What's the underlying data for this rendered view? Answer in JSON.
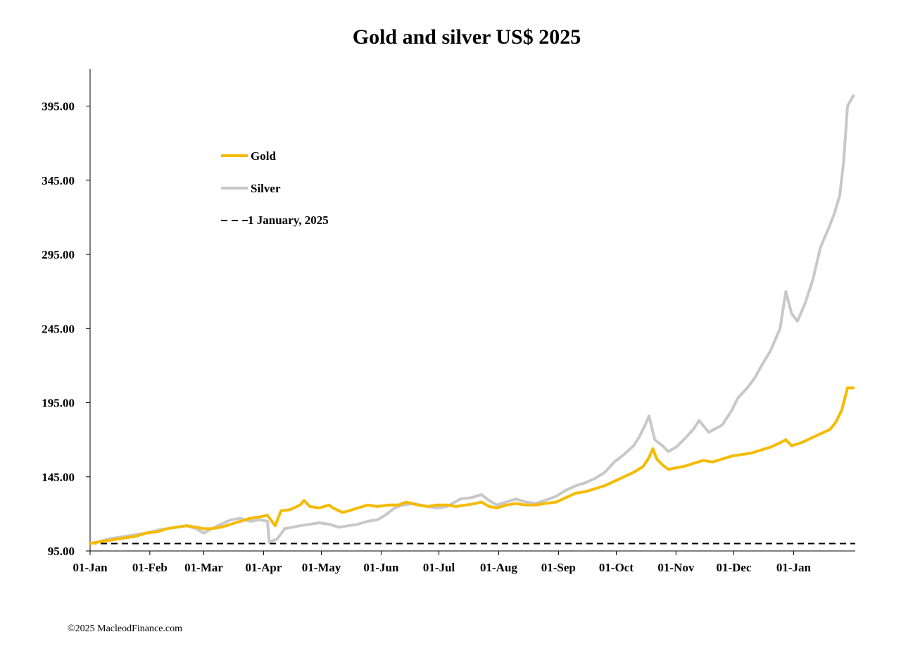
{
  "chart_data": {
    "type": "line",
    "title": "Gold and silver  US$ 2025",
    "xlabel": "",
    "ylabel": "",
    "ylim": [
      95,
      420
    ],
    "y_ticks": [
      95,
      145,
      195,
      245,
      295,
      345,
      395
    ],
    "y_tick_labels": [
      "95.00",
      "145.00",
      "195.00",
      "245.00",
      "295.00",
      "345.00",
      "395.00"
    ],
    "x_ticks": [
      {
        "label": "01-Jan",
        "date": "2025-01-01"
      },
      {
        "label": "01-Feb",
        "date": "2025-02-01"
      },
      {
        "label": "01-Mar",
        "date": "2025-03-01"
      },
      {
        "label": "01-Apr",
        "date": "2025-04-01"
      },
      {
        "label": "01-May",
        "date": "2025-05-01"
      },
      {
        "label": "01-Jun",
        "date": "2025-06-01"
      },
      {
        "label": "01-Jul",
        "date": "2025-07-01"
      },
      {
        "label": "01-Aug",
        "date": "2025-08-01"
      },
      {
        "label": "01-Sep",
        "date": "2025-09-01"
      },
      {
        "label": "01-Oct",
        "date": "2025-10-01"
      },
      {
        "label": "01-Nov",
        "date": "2025-11-01"
      },
      {
        "label": "01-Dec",
        "date": "2025-12-01"
      },
      {
        "label": "01-Jan",
        "date": "2026-01-01"
      }
    ],
    "xlim": [
      "2025-01-01",
      "2026-02-02"
    ],
    "grid": false,
    "legend_position": "upper-left",
    "series": [
      {
        "name": "Gold",
        "color": "#f5bb00",
        "points": [
          [
            "2025-01-01",
            100
          ],
          [
            "2025-01-05",
            101
          ],
          [
            "2025-01-10",
            102
          ],
          [
            "2025-01-15",
            103
          ],
          [
            "2025-01-20",
            104
          ],
          [
            "2025-01-25",
            105
          ],
          [
            "2025-01-30",
            107
          ],
          [
            "2025-02-05",
            108
          ],
          [
            "2025-02-10",
            110
          ],
          [
            "2025-02-15",
            111
          ],
          [
            "2025-02-20",
            112
          ],
          [
            "2025-02-25",
            111
          ],
          [
            "2025-03-01",
            110
          ],
          [
            "2025-03-05",
            110
          ],
          [
            "2025-03-10",
            111
          ],
          [
            "2025-03-15",
            113
          ],
          [
            "2025-03-20",
            115
          ],
          [
            "2025-03-25",
            117
          ],
          [
            "2025-03-30",
            118
          ],
          [
            "2025-04-03",
            119
          ],
          [
            "2025-04-07",
            112
          ],
          [
            "2025-04-10",
            122
          ],
          [
            "2025-04-15",
            123
          ],
          [
            "2025-04-20",
            126
          ],
          [
            "2025-04-22",
            129
          ],
          [
            "2025-04-25",
            125
          ],
          [
            "2025-04-30",
            124
          ],
          [
            "2025-05-05",
            126
          ],
          [
            "2025-05-07",
            124
          ],
          [
            "2025-05-12",
            121
          ],
          [
            "2025-05-15",
            122
          ],
          [
            "2025-05-20",
            124
          ],
          [
            "2025-05-25",
            126
          ],
          [
            "2025-05-30",
            125
          ],
          [
            "2025-06-05",
            126
          ],
          [
            "2025-06-10",
            126
          ],
          [
            "2025-06-14",
            128
          ],
          [
            "2025-06-20",
            126
          ],
          [
            "2025-06-25",
            125
          ],
          [
            "2025-06-30",
            126
          ],
          [
            "2025-07-05",
            126
          ],
          [
            "2025-07-10",
            125
          ],
          [
            "2025-07-15",
            126
          ],
          [
            "2025-07-20",
            127
          ],
          [
            "2025-07-23",
            128
          ],
          [
            "2025-07-27",
            125
          ],
          [
            "2025-07-31",
            124
          ],
          [
            "2025-08-05",
            126
          ],
          [
            "2025-08-10",
            127
          ],
          [
            "2025-08-15",
            126
          ],
          [
            "2025-08-20",
            126
          ],
          [
            "2025-08-25",
            127
          ],
          [
            "2025-08-31",
            128
          ],
          [
            "2025-09-05",
            131
          ],
          [
            "2025-09-10",
            134
          ],
          [
            "2025-09-15",
            135
          ],
          [
            "2025-09-20",
            137
          ],
          [
            "2025-09-25",
            139
          ],
          [
            "2025-09-30",
            142
          ],
          [
            "2025-10-05",
            145
          ],
          [
            "2025-10-10",
            148
          ],
          [
            "2025-10-15",
            152
          ],
          [
            "2025-10-18",
            158
          ],
          [
            "2025-10-20",
            164
          ],
          [
            "2025-10-22",
            157
          ],
          [
            "2025-10-25",
            153
          ],
          [
            "2025-10-28",
            150
          ],
          [
            "2025-11-01",
            151
          ],
          [
            "2025-11-05",
            152
          ],
          [
            "2025-11-10",
            154
          ],
          [
            "2025-11-15",
            156
          ],
          [
            "2025-11-20",
            155
          ],
          [
            "2025-11-25",
            157
          ],
          [
            "2025-11-30",
            159
          ],
          [
            "2025-12-05",
            160
          ],
          [
            "2025-12-10",
            161
          ],
          [
            "2025-12-15",
            163
          ],
          [
            "2025-12-20",
            165
          ],
          [
            "2025-12-25",
            168
          ],
          [
            "2025-12-28",
            170
          ],
          [
            "2025-12-31",
            166
          ],
          [
            "2026-01-05",
            168
          ],
          [
            "2026-01-10",
            171
          ],
          [
            "2026-01-15",
            174
          ],
          [
            "2026-01-20",
            177
          ],
          [
            "2026-01-23",
            182
          ],
          [
            "2026-01-26",
            190
          ],
          [
            "2026-01-29",
            205
          ],
          [
            "2026-02-01",
            205
          ]
        ]
      },
      {
        "name": "Silver",
        "color": "#c8c8c8",
        "points": [
          [
            "2025-01-01",
            100
          ],
          [
            "2025-01-05",
            101
          ],
          [
            "2025-01-10",
            103
          ],
          [
            "2025-01-15",
            104
          ],
          [
            "2025-01-20",
            105
          ],
          [
            "2025-01-25",
            106
          ],
          [
            "2025-01-30",
            107
          ],
          [
            "2025-02-05",
            109
          ],
          [
            "2025-02-10",
            110
          ],
          [
            "2025-02-15",
            111
          ],
          [
            "2025-02-20",
            112
          ],
          [
            "2025-02-25",
            110
          ],
          [
            "2025-03-01",
            107
          ],
          [
            "2025-03-05",
            110
          ],
          [
            "2025-03-10",
            113
          ],
          [
            "2025-03-15",
            116
          ],
          [
            "2025-03-20",
            117
          ],
          [
            "2025-03-25",
            115
          ],
          [
            "2025-03-30",
            116
          ],
          [
            "2025-04-03",
            115
          ],
          [
            "2025-04-04",
            101
          ],
          [
            "2025-04-08",
            103
          ],
          [
            "2025-04-12",
            110
          ],
          [
            "2025-04-20",
            112
          ],
          [
            "2025-04-25",
            113
          ],
          [
            "2025-04-30",
            114
          ],
          [
            "2025-05-05",
            113
          ],
          [
            "2025-05-10",
            111
          ],
          [
            "2025-05-15",
            112
          ],
          [
            "2025-05-20",
            113
          ],
          [
            "2025-05-25",
            115
          ],
          [
            "2025-05-30",
            116
          ],
          [
            "2025-06-03",
            119
          ],
          [
            "2025-06-08",
            124
          ],
          [
            "2025-06-12",
            126
          ],
          [
            "2025-06-18",
            127
          ],
          [
            "2025-06-25",
            125
          ],
          [
            "2025-06-30",
            124
          ],
          [
            "2025-07-05",
            125
          ],
          [
            "2025-07-08",
            127
          ],
          [
            "2025-07-12",
            130
          ],
          [
            "2025-07-18",
            131
          ],
          [
            "2025-07-23",
            133
          ],
          [
            "2025-07-27",
            129
          ],
          [
            "2025-07-31",
            126
          ],
          [
            "2025-08-05",
            128
          ],
          [
            "2025-08-10",
            130
          ],
          [
            "2025-08-15",
            128
          ],
          [
            "2025-08-20",
            127
          ],
          [
            "2025-08-25",
            129
          ],
          [
            "2025-08-31",
            132
          ],
          [
            "2025-09-05",
            136
          ],
          [
            "2025-09-10",
            139
          ],
          [
            "2025-09-15",
            141
          ],
          [
            "2025-09-20",
            144
          ],
          [
            "2025-09-25",
            148
          ],
          [
            "2025-09-30",
            155
          ],
          [
            "2025-10-05",
            160
          ],
          [
            "2025-10-10",
            166
          ],
          [
            "2025-10-13",
            172
          ],
          [
            "2025-10-16",
            180
          ],
          [
            "2025-10-18",
            186
          ],
          [
            "2025-10-21",
            170
          ],
          [
            "2025-10-25",
            166
          ],
          [
            "2025-10-28",
            162
          ],
          [
            "2025-11-01",
            165
          ],
          [
            "2025-11-05",
            170
          ],
          [
            "2025-11-10",
            177
          ],
          [
            "2025-11-13",
            183
          ],
          [
            "2025-11-18",
            175
          ],
          [
            "2025-11-25",
            180
          ],
          [
            "2025-11-30",
            190
          ],
          [
            "2025-12-03",
            198
          ],
          [
            "2025-12-08",
            205
          ],
          [
            "2025-12-12",
            212
          ],
          [
            "2025-12-15",
            219
          ],
          [
            "2025-12-20",
            230
          ],
          [
            "2025-12-25",
            245
          ],
          [
            "2025-12-28",
            270
          ],
          [
            "2025-12-31",
            255
          ],
          [
            "2026-01-03",
            250
          ],
          [
            "2026-01-07",
            262
          ],
          [
            "2026-01-11",
            278
          ],
          [
            "2026-01-15",
            300
          ],
          [
            "2026-01-19",
            312
          ],
          [
            "2026-01-22",
            322
          ],
          [
            "2026-01-25",
            335
          ],
          [
            "2026-01-27",
            358
          ],
          [
            "2026-01-29",
            395
          ],
          [
            "2026-02-01",
            402
          ]
        ]
      },
      {
        "name": "1 January, 2025",
        "color": "#000000",
        "dashed": true,
        "constant": 100
      }
    ]
  },
  "legend": {
    "gold": "Gold",
    "silver": "Silver",
    "baseline": "1 January, 2025"
  },
  "footer": {
    "copyright": "©2025 MacleodFinance.com"
  }
}
